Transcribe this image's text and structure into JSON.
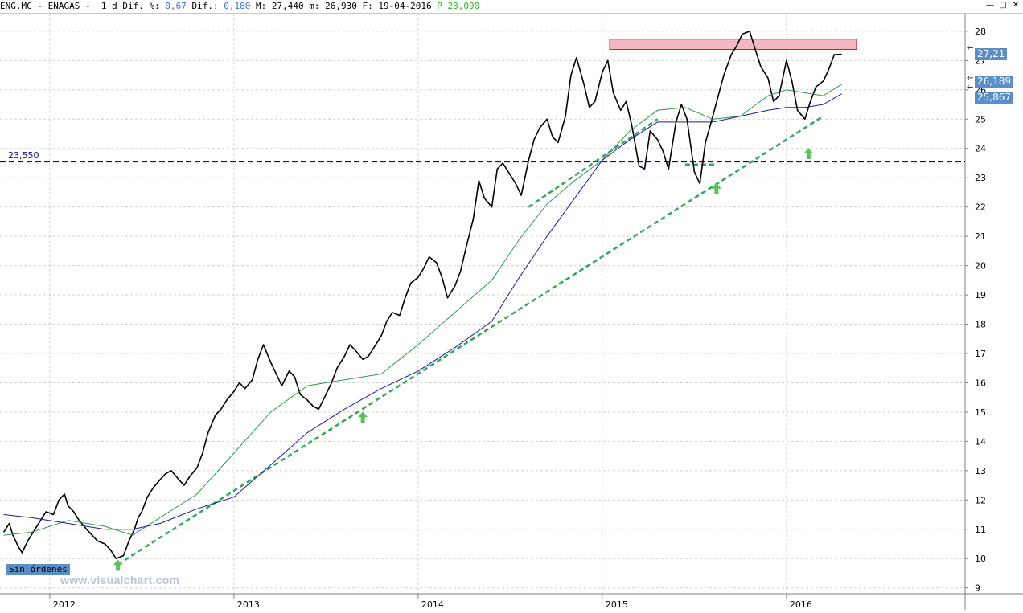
{
  "header": {
    "symbol": "ENG.MC",
    "name": "ENAGAS",
    "period": "1 d",
    "pct_label": "Dif. %:",
    "pct_value": "0,67",
    "dif_label": "Dif.:",
    "dif_value": "0,180",
    "max_label": "M:",
    "max_value": "27,440",
    "min_label": "m:",
    "min_value": "26,930",
    "date_label": "F:",
    "date_value": "19-04-2016",
    "p_label": "P",
    "p_value": "23,090"
  },
  "window_buttons": [
    "—",
    "□",
    "✕"
  ],
  "badges": {
    "last_price": "27,21",
    "ma_short": "26,189",
    "ma_long": "25,867",
    "orders": "Sin órdenes"
  },
  "watermark": "www.visualchart.com",
  "colors": {
    "price": "#000000",
    "ma_short": "#2e9a4e",
    "ma_long": "#1a1aa0",
    "trendline": "#2fa85a",
    "support": "#0a0a9a",
    "resistance_fill": "#f5b8c0",
    "resistance_stroke": "#d02030",
    "arrow": "#5fbf5f",
    "badge_price": "#5b8ec6"
  },
  "chart_data": {
    "type": "line",
    "title": "ENG.MC - ENAGAS",
    "xlabel": "",
    "ylabel": "",
    "ylim": [
      8.8,
      28.6
    ],
    "y_ticks": [
      9,
      10,
      11,
      12,
      13,
      14,
      15,
      16,
      17,
      18,
      19,
      20,
      21,
      22,
      23,
      24,
      25,
      26,
      27,
      28
    ],
    "x_ticks": [
      "2012",
      "2013",
      "2014",
      "2015",
      "2016"
    ],
    "x_tick_values": [
      2012.0,
      2013.0,
      2014.0,
      2015.0,
      2016.0
    ],
    "xlim": [
      2011.73,
      2016.97
    ],
    "series": [
      {
        "style": "price",
        "x": [
          2011.75,
          2011.78,
          2011.8,
          2011.83,
          2011.85,
          2011.88,
          2011.92,
          2011.95,
          2011.98,
          2012.02,
          2012.05,
          2012.08,
          2012.1,
          2012.13,
          2012.16,
          2012.2,
          2012.23,
          2012.26,
          2012.3,
          2012.33,
          2012.36,
          2012.4,
          2012.43,
          2012.46,
          2012.48,
          2012.5,
          2012.53,
          2012.56,
          2012.6,
          2012.63,
          2012.66,
          2012.7,
          2012.73,
          2012.76,
          2012.8,
          2012.83,
          2012.86,
          2012.9,
          2012.93,
          2012.96,
          2013.0,
          2013.03,
          2013.06,
          2013.1,
          2013.13,
          2013.16,
          2013.2,
          2013.23,
          2013.26,
          2013.3,
          2013.33,
          2013.36,
          2013.4,
          2013.43,
          2013.46,
          2013.5,
          2013.53,
          2013.56,
          2013.6,
          2013.63,
          2013.66,
          2013.7,
          2013.73,
          2013.76,
          2013.8,
          2013.83,
          2013.86,
          2013.9,
          2013.93,
          2013.96,
          2014.0,
          2014.03,
          2014.06,
          2014.1,
          2014.13,
          2014.16,
          2014.2,
          2014.23,
          2014.26,
          2014.3,
          2014.33,
          2014.36,
          2014.4,
          2014.43,
          2014.46,
          2014.5,
          2014.53,
          2014.56,
          2014.6,
          2014.63,
          2014.66,
          2014.7,
          2014.73,
          2014.76,
          2014.8,
          2014.83,
          2014.86,
          2014.9,
          2014.93,
          2014.96,
          2015.0,
          2015.03,
          2015.06,
          2015.1,
          2015.13,
          2015.16,
          2015.2,
          2015.23,
          2015.26,
          2015.3,
          2015.33,
          2015.36,
          2015.4,
          2015.43,
          2015.46,
          2015.5,
          2015.53,
          2015.56,
          2015.6,
          2015.63,
          2015.66,
          2015.7,
          2015.73,
          2015.76,
          2015.8,
          2015.83,
          2015.86,
          2015.9,
          2015.93,
          2015.96,
          2016.0,
          2016.03,
          2016.06,
          2016.1,
          2016.13,
          2016.16,
          2016.2,
          2016.23,
          2016.26,
          2016.3
        ],
        "y": [
          10.9,
          11.2,
          10.8,
          10.4,
          10.2,
          10.6,
          11.0,
          11.3,
          11.6,
          11.5,
          12.0,
          12.2,
          11.8,
          11.6,
          11.3,
          11.0,
          10.8,
          10.6,
          10.5,
          10.3,
          10.0,
          10.1,
          10.6,
          11.0,
          11.4,
          11.6,
          12.1,
          12.4,
          12.7,
          12.9,
          13.0,
          12.7,
          12.5,
          12.8,
          13.1,
          13.6,
          14.3,
          14.9,
          15.1,
          15.4,
          15.7,
          16.0,
          15.8,
          16.1,
          16.8,
          17.3,
          16.7,
          16.3,
          15.9,
          16.4,
          16.2,
          15.6,
          15.4,
          15.2,
          15.1,
          15.6,
          16.0,
          16.5,
          16.9,
          17.3,
          17.1,
          16.8,
          16.9,
          17.2,
          17.6,
          18.1,
          18.4,
          18.3,
          18.9,
          19.4,
          19.6,
          19.9,
          20.3,
          20.1,
          19.6,
          18.9,
          19.3,
          19.8,
          20.6,
          21.6,
          22.9,
          22.3,
          22.0,
          23.3,
          23.5,
          23.1,
          22.8,
          22.4,
          23.6,
          24.3,
          24.7,
          25.0,
          24.4,
          24.2,
          25.1,
          26.5,
          27.1,
          26.2,
          25.4,
          25.6,
          26.6,
          27.0,
          25.9,
          25.3,
          25.6,
          24.8,
          23.4,
          23.3,
          24.6,
          24.3,
          23.9,
          23.3,
          24.9,
          25.5,
          25.0,
          23.2,
          22.8,
          24.2,
          25.1,
          25.8,
          26.5,
          27.2,
          27.5,
          27.9,
          28.0,
          27.4,
          26.8,
          26.4,
          25.6,
          25.8,
          27.0,
          26.3,
          25.3,
          25.0,
          25.6,
          26.1,
          26.3,
          26.7,
          27.2,
          27.21
        ]
      },
      {
        "style": "ma_short",
        "x": [
          2011.75,
          2011.9,
          2012.1,
          2012.3,
          2012.45,
          2012.6,
          2012.8,
          2013.0,
          2013.2,
          2013.4,
          2013.6,
          2013.8,
          2014.0,
          2014.2,
          2014.4,
          2014.55,
          2014.7,
          2014.85,
          2015.0,
          2015.15,
          2015.3,
          2015.45,
          2015.6,
          2015.75,
          2015.9,
          2016.0,
          2016.1,
          2016.2,
          2016.3
        ],
        "y": [
          10.8,
          10.9,
          11.3,
          11.1,
          10.8,
          11.4,
          12.2,
          13.6,
          15.0,
          15.9,
          16.1,
          16.3,
          17.3,
          18.4,
          19.5,
          20.9,
          22.1,
          22.9,
          23.6,
          24.6,
          25.3,
          25.4,
          25.0,
          25.1,
          25.8,
          26.0,
          25.9,
          25.8,
          26.189
        ]
      },
      {
        "style": "ma_long",
        "x": [
          2011.75,
          2011.9,
          2012.1,
          2012.3,
          2012.45,
          2012.6,
          2012.8,
          2013.0,
          2013.2,
          2013.4,
          2013.6,
          2013.8,
          2014.0,
          2014.2,
          2014.4,
          2014.55,
          2014.7,
          2014.85,
          2015.0,
          2015.15,
          2015.3,
          2015.45,
          2015.6,
          2015.75,
          2015.9,
          2016.0,
          2016.1,
          2016.2,
          2016.3
        ],
        "y": [
          11.5,
          11.4,
          11.2,
          11.0,
          11.0,
          11.2,
          11.7,
          12.1,
          13.2,
          14.3,
          15.1,
          15.8,
          16.4,
          17.2,
          18.1,
          19.6,
          21.0,
          22.3,
          23.6,
          24.3,
          24.9,
          24.9,
          24.9,
          25.1,
          25.3,
          25.4,
          25.4,
          25.5,
          25.867
        ]
      }
    ],
    "annotations": {
      "support_line": {
        "y": 23.55,
        "label": "23,550"
      },
      "resistance_zone": {
        "x_range": [
          2015.04,
          2016.38
        ],
        "y_range": [
          27.38,
          27.73
        ]
      },
      "trendlines": [
        {
          "x": [
            2012.37,
            2016.2
          ],
          "y": [
            9.8,
            25.1
          ]
        },
        {
          "x": [
            2014.6,
            2015.3
          ],
          "y": [
            22.0,
            25.0
          ]
        },
        {
          "x": [
            2015.45,
            2015.62
          ],
          "y": [
            23.45,
            23.45
          ]
        }
      ],
      "up_arrows": [
        {
          "x": 2012.37,
          "y": 9.75
        },
        {
          "x": 2013.7,
          "y": 14.8
        },
        {
          "x": 2015.62,
          "y": 22.6
        },
        {
          "x": 2016.12,
          "y": 23.8
        }
      ]
    }
  }
}
